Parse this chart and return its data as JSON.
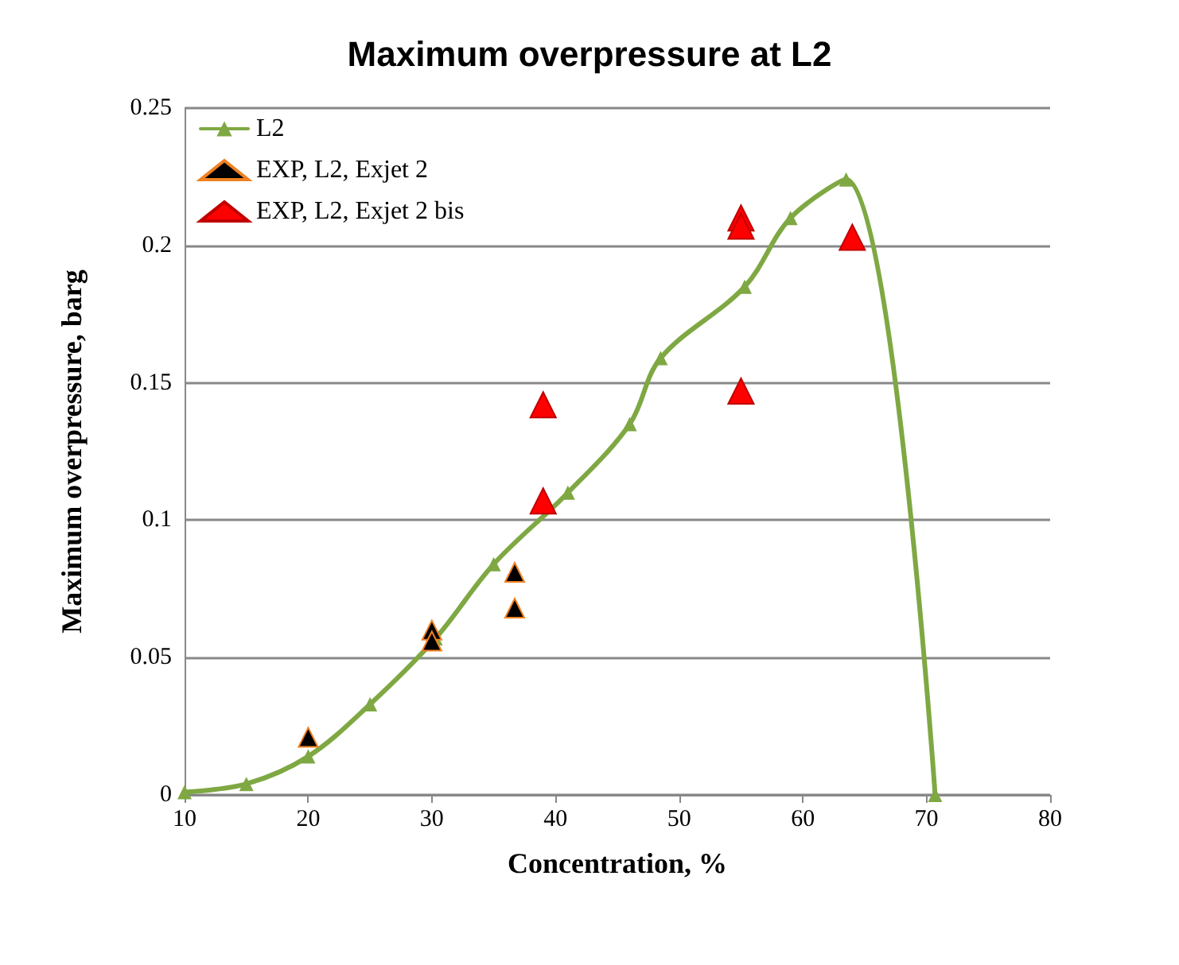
{
  "chart_data": {
    "type": "line",
    "title": "Maximum overpressure at L2",
    "xlabel": "Concentration, %",
    "ylabel": "Maximum overpressure, barg",
    "series": [
      {
        "name": "L2",
        "color": "#7fa843",
        "marker": "triangle",
        "x": [
          10,
          15,
          20,
          25,
          30.3,
          35,
          41,
          46,
          48.5,
          55.3,
          59,
          63.5,
          70.7
        ],
        "values": [
          0.001,
          0.004,
          0.014,
          0.033,
          0.057,
          0.084,
          0.11,
          0.135,
          0.159,
          0.185,
          0.21,
          0.224,
          0
        ]
      },
      {
        "name": "EXP, L2, Exjet 2",
        "type": "scatter",
        "color": "#000000",
        "marker": "triangle",
        "x": [
          20,
          30,
          30,
          36.7,
          36.7
        ],
        "values": [
          0.021,
          0.06,
          0.056,
          0.081,
          0.068
        ]
      },
      {
        "name": "EXP, L2, Exjet 2 bis",
        "type": "scatter",
        "color": "#ff0000",
        "marker": "triangle",
        "x": [
          39,
          39,
          55,
          55,
          55,
          64
        ],
        "values": [
          0.142,
          0.107,
          0.21,
          0.207,
          0.147,
          0.203
        ]
      }
    ],
    "xlim": [
      10,
      80
    ],
    "xticks": [
      10,
      20,
      30,
      40,
      50,
      60,
      70,
      80
    ],
    "ylim": [
      0,
      0.25
    ],
    "yticks": [
      0,
      0.05,
      0.1,
      0.15,
      0.2,
      0.25
    ],
    "grid": "y",
    "legend": "top left"
  }
}
